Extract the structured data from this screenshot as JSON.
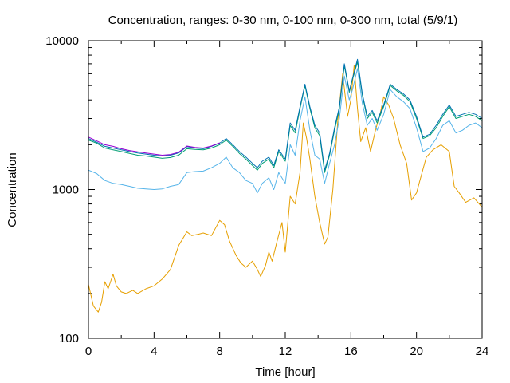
{
  "chart_data": {
    "type": "line",
    "title": "Concentration, ranges: 0-30 nm, 0-100 nm, 0-300 nm, total (5/9/1)",
    "xlabel": "Time [hour]",
    "ylabel": "Concentration",
    "xlim": [
      0,
      24
    ],
    "ylim": [
      100,
      10000
    ],
    "y_scale": "log",
    "grid": false,
    "legend": "none",
    "x_ticks": [
      "0",
      "4",
      "8",
      "12",
      "16",
      "20",
      "24"
    ],
    "y_ticks": [
      "100",
      "1000",
      "10000"
    ],
    "series": [
      {
        "color": "#e69f00",
        "x": [
          0,
          0.3,
          0.6,
          0.8,
          1.0,
          1.2,
          1.5,
          1.7,
          2.0,
          2.3,
          2.7,
          3.0,
          3.5,
          4.0,
          4.5,
          5.0,
          5.5,
          6.0,
          6.3,
          6.7,
          7.0,
          7.5,
          8.0,
          8.3,
          8.6,
          9.0,
          9.3,
          9.6,
          10.0,
          10.3,
          10.5,
          10.8,
          11.0,
          11.2,
          11.5,
          11.8,
          12.0,
          12.3,
          12.6,
          12.9,
          13.1,
          13.3,
          13.5,
          13.8,
          14.1,
          14.4,
          14.6,
          14.9,
          15.2,
          15.5,
          15.8,
          16.0,
          16.2,
          16.4,
          16.6,
          16.9,
          17.2,
          17.5,
          17.8,
          18.0,
          18.3,
          18.6,
          19.0,
          19.4,
          19.7,
          20.0,
          20.3,
          20.6,
          21.0,
          21.5,
          22.0,
          22.3,
          22.6,
          23.0,
          23.5,
          24.0
        ],
        "values": [
          230,
          165,
          150,
          175,
          240,
          215,
          270,
          225,
          205,
          200,
          210,
          200,
          215,
          225,
          250,
          290,
          420,
          520,
          490,
          500,
          510,
          490,
          620,
          580,
          450,
          360,
          320,
          300,
          330,
          290,
          260,
          310,
          380,
          330,
          450,
          600,
          380,
          900,
          800,
          1300,
          2800,
          2200,
          1600,
          900,
          600,
          430,
          480,
          1000,
          2900,
          6000,
          3100,
          4000,
          6800,
          3500,
          2100,
          2600,
          1800,
          2500,
          3300,
          4200,
          3700,
          3000,
          2000,
          1500,
          850,
          950,
          1250,
          1650,
          1850,
          2000,
          1800,
          1050,
          950,
          820,
          880,
          760
        ]
      },
      {
        "color": "#56b4e9",
        "x": [
          0,
          0.5,
          1.0,
          1.5,
          2.0,
          2.5,
          3.0,
          3.5,
          4.0,
          4.5,
          5.0,
          5.5,
          6.0,
          6.5,
          7.0,
          7.5,
          8.0,
          8.4,
          8.8,
          9.2,
          9.6,
          10.0,
          10.3,
          10.6,
          11.0,
          11.3,
          11.6,
          12.0,
          12.3,
          12.6,
          12.9,
          13.2,
          13.5,
          13.8,
          14.1,
          14.4,
          14.7,
          15.0,
          15.3,
          15.6,
          15.9,
          16.1,
          16.4,
          16.7,
          17.0,
          17.3,
          17.6,
          18.0,
          18.4,
          18.8,
          19.2,
          19.6,
          20.0,
          20.4,
          20.8,
          21.2,
          21.6,
          22.0,
          22.4,
          22.8,
          23.2,
          23.6,
          24.0
        ],
        "values": [
          1350,
          1280,
          1150,
          1100,
          1080,
          1050,
          1020,
          1010,
          1000,
          1010,
          1050,
          1080,
          1300,
          1320,
          1330,
          1400,
          1500,
          1650,
          1400,
          1300,
          1150,
          1100,
          950,
          1100,
          1200,
          1000,
          1300,
          1100,
          2000,
          1700,
          2900,
          4200,
          2500,
          1700,
          1600,
          1100,
          1500,
          2000,
          3000,
          5800,
          4000,
          4700,
          6500,
          3800,
          2700,
          3000,
          2500,
          3200,
          4700,
          4200,
          3900,
          3500,
          2600,
          1800,
          1900,
          2200,
          2700,
          2900,
          2400,
          2500,
          2700,
          2800,
          2600
        ]
      },
      {
        "color": "#009e73",
        "x": [
          0,
          0.5,
          1.0,
          1.5,
          2.0,
          2.5,
          3.0,
          3.5,
          4.0,
          4.5,
          5.0,
          5.5,
          6.0,
          6.5,
          7.0,
          7.5,
          8.0,
          8.4,
          8.8,
          9.2,
          9.6,
          10.0,
          10.3,
          10.6,
          11.0,
          11.3,
          11.6,
          12.0,
          12.3,
          12.6,
          12.9,
          13.2,
          13.5,
          13.8,
          14.1,
          14.4,
          14.7,
          15.0,
          15.3,
          15.6,
          15.9,
          16.1,
          16.4,
          16.7,
          17.0,
          17.3,
          17.6,
          18.0,
          18.4,
          18.8,
          19.2,
          19.6,
          20.0,
          20.4,
          20.8,
          21.2,
          21.6,
          22.0,
          22.4,
          22.8,
          23.2,
          23.6,
          24.0
        ],
        "values": [
          2150,
          2050,
          1900,
          1850,
          1800,
          1750,
          1700,
          1680,
          1650,
          1620,
          1640,
          1700,
          1880,
          1860,
          1850,
          1900,
          2000,
          2150,
          1950,
          1750,
          1600,
          1450,
          1350,
          1500,
          1600,
          1400,
          1800,
          1550,
          2700,
          2400,
          3500,
          5000,
          3500,
          2600,
          2300,
          1300,
          1700,
          2500,
          3500,
          6800,
          4500,
          5500,
          7200,
          4300,
          3000,
          3300,
          2800,
          3600,
          5000,
          4600,
          4300,
          3900,
          3000,
          2200,
          2300,
          2600,
          3100,
          3600,
          3000,
          3100,
          3200,
          3100,
          2900
        ]
      },
      {
        "color": "#0072b2",
        "x": [
          0,
          0.5,
          1.0,
          1.5,
          2.0,
          2.5,
          3.0,
          3.5,
          4.0,
          4.5,
          5.0,
          5.5,
          6.0,
          6.5,
          7.0,
          7.5,
          8.0,
          8.4,
          8.8,
          9.2,
          9.6,
          10.0,
          10.3,
          10.6,
          11.0,
          11.3,
          11.6,
          12.0,
          12.3,
          12.6,
          12.9,
          13.2,
          13.5,
          13.8,
          14.1,
          14.4,
          14.7,
          15.0,
          15.3,
          15.6,
          15.9,
          16.1,
          16.4,
          16.7,
          17.0,
          17.3,
          17.6,
          18.0,
          18.4,
          18.8,
          19.2,
          19.6,
          20.0,
          20.4,
          20.8,
          21.2,
          21.6,
          22.0,
          22.4,
          22.8,
          23.2,
          23.6,
          24.0
        ],
        "values": [
          2200,
          2080,
          1950,
          1900,
          1850,
          1800,
          1760,
          1730,
          1700,
          1680,
          1700,
          1760,
          1940,
          1900,
          1880,
          1950,
          2050,
          2200,
          2000,
          1800,
          1650,
          1500,
          1400,
          1550,
          1650,
          1450,
          1850,
          1600,
          2800,
          2500,
          3600,
          5100,
          3600,
          2700,
          2400,
          1350,
          1750,
          2600,
          3600,
          7000,
          4600,
          5600,
          7500,
          4400,
          3100,
          3400,
          2900,
          3700,
          5100,
          4700,
          4400,
          4000,
          3100,
          2250,
          2350,
          2700,
          3200,
          3700,
          3100,
          3200,
          3300,
          3200,
          3000
        ]
      },
      {
        "color": "#9400d3",
        "x": [
          0,
          0.5,
          1.0,
          1.5,
          2.0,
          2.5,
          3.0,
          3.5,
          4.0,
          4.5,
          5.0,
          5.5,
          6.0,
          6.5,
          7.0,
          7.5,
          8.0
        ],
        "values": [
          2250,
          2120,
          2000,
          1950,
          1880,
          1830,
          1790,
          1760,
          1730,
          1700,
          1720,
          1780,
          1960,
          1920,
          1900,
          1960,
          2060
        ]
      }
    ]
  }
}
